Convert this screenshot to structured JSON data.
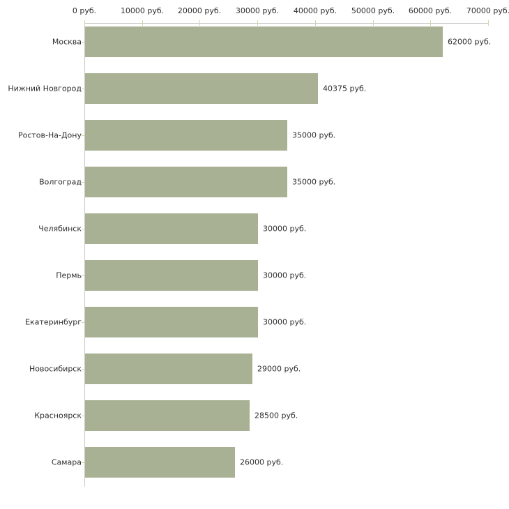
{
  "chart_data": {
    "type": "bar",
    "orientation": "horizontal",
    "title": "",
    "xlabel": "",
    "ylabel": "",
    "unit": "руб.",
    "categories": [
      "Москва",
      "Нижний Новгород",
      "Ростов-На-Дону",
      "Волгоград",
      "Челябинск",
      "Пермь",
      "Екатеринбург",
      "Новосибирск",
      "Красноярск",
      "Самара"
    ],
    "values": [
      62000,
      40375,
      35000,
      35000,
      30000,
      30000,
      30000,
      29000,
      28500,
      26000
    ],
    "value_labels": [
      "62000 руб.",
      "40375 руб.",
      "35000 руб.",
      "35000 руб.",
      "30000 руб.",
      "30000 руб.",
      "30000 руб.",
      "29000 руб.",
      "28500 руб.",
      "26000 руб."
    ],
    "xlim": [
      0,
      70000
    ],
    "x_ticks": [
      0,
      10000,
      20000,
      30000,
      40000,
      50000,
      60000,
      70000
    ],
    "x_tick_labels": [
      "0 руб.",
      "10000 руб.",
      "20000 руб.",
      "30000 руб.",
      "40000 руб.",
      "50000 руб.",
      "60000 руб.",
      "70000 руб."
    ],
    "grid": false,
    "legend": null,
    "colors": {
      "bar": "#a8b193",
      "axis": "#c9c9c9",
      "tick": "#d3d5a9",
      "text": "#2e2e2e",
      "background": "#ffffff"
    }
  }
}
